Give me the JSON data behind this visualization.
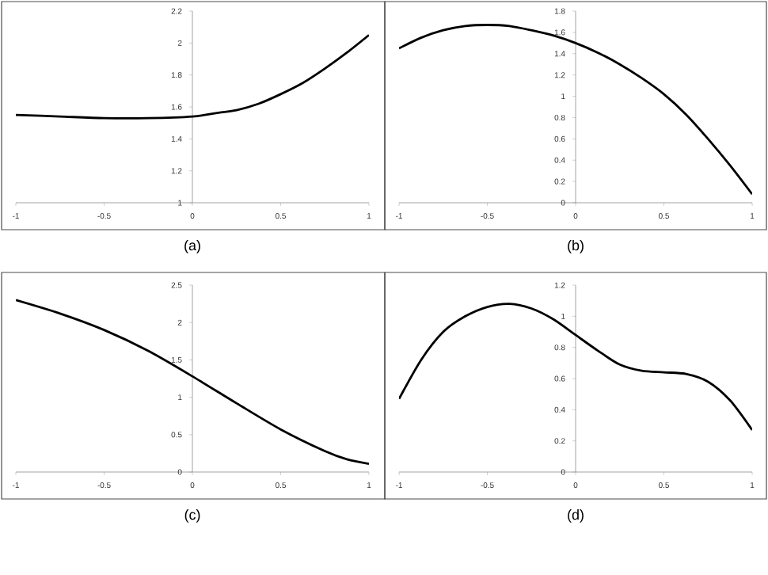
{
  "chart_data": [
    {
      "type": "line",
      "xlabel": "(a)",
      "xlim": [
        -1,
        1
      ],
      "ylim": [
        1,
        2.2
      ],
      "xticks": [
        -1,
        -0.5,
        0,
        0.5,
        1
      ],
      "yticks": [
        1,
        1.2,
        1.4,
        1.6,
        1.8,
        2,
        2.2
      ],
      "series": [
        {
          "color": "#000000",
          "x": [
            -1,
            -0.75,
            -0.5,
            -0.25,
            0,
            0.125,
            0.25,
            0.375,
            0.5,
            0.625,
            0.75,
            0.875,
            1
          ],
          "values": [
            1.55,
            1.54,
            1.53,
            1.53,
            1.54,
            1.56,
            1.58,
            1.62,
            1.68,
            1.75,
            1.84,
            1.94,
            2.05
          ]
        }
      ]
    },
    {
      "type": "line",
      "xlabel": "(b)",
      "xlim": [
        -1,
        1
      ],
      "ylim": [
        0,
        1.8
      ],
      "xticks": [
        -1,
        -0.5,
        0,
        0.5,
        1
      ],
      "yticks": [
        0,
        0.2,
        0.4,
        0.6,
        0.8,
        1,
        1.2,
        1.4,
        1.6,
        1.8
      ],
      "series": [
        {
          "color": "#000000",
          "x": [
            -1,
            -0.875,
            -0.75,
            -0.625,
            -0.5,
            -0.375,
            -0.25,
            -0.125,
            0,
            0.125,
            0.25,
            0.375,
            0.5,
            0.625,
            0.75,
            0.875,
            1
          ],
          "values": [
            1.45,
            1.55,
            1.62,
            1.66,
            1.67,
            1.66,
            1.62,
            1.57,
            1.5,
            1.41,
            1.3,
            1.17,
            1.02,
            0.83,
            0.6,
            0.35,
            0.08
          ]
        }
      ]
    },
    {
      "type": "line",
      "xlabel": "(c)",
      "xlim": [
        -1,
        1
      ],
      "ylim": [
        0,
        2.5
      ],
      "xticks": [
        -1,
        -0.5,
        0,
        0.5,
        1
      ],
      "yticks": [
        0,
        0.5,
        1,
        1.5,
        2,
        2.5
      ],
      "series": [
        {
          "color": "#000000",
          "x": [
            -1,
            -0.75,
            -0.5,
            -0.25,
            0,
            0.25,
            0.5,
            0.75,
            0.875,
            1
          ],
          "values": [
            2.3,
            2.12,
            1.9,
            1.62,
            1.28,
            0.92,
            0.57,
            0.28,
            0.17,
            0.11
          ]
        }
      ]
    },
    {
      "type": "line",
      "xlabel": "(d)",
      "xlim": [
        -1,
        1
      ],
      "ylim": [
        0,
        1.2
      ],
      "xticks": [
        -1,
        -0.5,
        0,
        0.5,
        1
      ],
      "yticks": [
        0,
        0.2,
        0.4,
        0.6,
        0.8,
        1,
        1.2
      ],
      "series": [
        {
          "color": "#000000",
          "x": [
            -1,
            -0.875,
            -0.75,
            -0.625,
            -0.5,
            -0.375,
            -0.25,
            -0.125,
            0,
            0.125,
            0.25,
            0.375,
            0.5,
            0.625,
            0.75,
            0.875,
            1
          ],
          "values": [
            0.47,
            0.72,
            0.9,
            1.0,
            1.06,
            1.08,
            1.05,
            0.98,
            0.88,
            0.78,
            0.69,
            0.65,
            0.64,
            0.63,
            0.58,
            0.46,
            0.27
          ]
        }
      ]
    }
  ]
}
